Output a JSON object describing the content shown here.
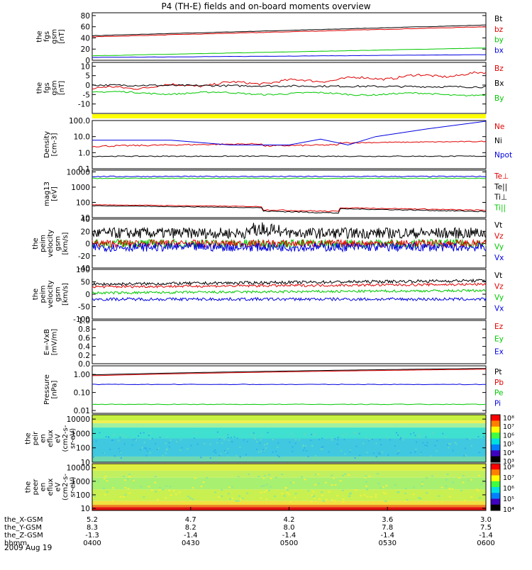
{
  "title": "P4 (TH-E) fields and on-board moments overview",
  "date": "2009 Aug 19",
  "colors": {
    "black": "#000000",
    "red": "#e00000",
    "green": "#00c800",
    "blue": "#0000e0",
    "yellow": "#ffff00"
  },
  "panels": [
    {
      "id": "fgs-mag",
      "ylabel": [
        "the",
        "fgs",
        "gsm",
        "[nT]"
      ],
      "ylim": [
        0,
        85
      ],
      "ticks": [
        "80",
        "60",
        "40",
        "20",
        "0"
      ],
      "tickvals": [
        80,
        60,
        40,
        20,
        0
      ],
      "legend": [
        {
          "label": "Bt",
          "color": "black"
        },
        {
          "label": "bz",
          "color": "red"
        },
        {
          "label": "by",
          "color": "green"
        },
        {
          "label": "bx",
          "color": "blue"
        }
      ]
    },
    {
      "id": "fgs-comp",
      "ylabel": [
        "the",
        "fgs",
        "gsm",
        "[nT]"
      ],
      "ylim": [
        -15,
        12
      ],
      "ticks": [
        "10",
        "5",
        "0",
        "-5",
        "-10"
      ],
      "tickvals": [
        10,
        5,
        0,
        -5,
        -10
      ],
      "legend": [
        {
          "label": "Bz",
          "color": "red"
        },
        {
          "label": "Bx",
          "color": "black"
        },
        {
          "label": "By",
          "color": "green"
        }
      ]
    },
    {
      "id": "density",
      "ylabel": [
        "Density",
        "[cm-3]"
      ],
      "log": true,
      "ylim": [
        0.1,
        100
      ],
      "ticks": [
        "100.0",
        "10.0",
        "1.0",
        "0.1"
      ],
      "tickvals": [
        100,
        10,
        1,
        0.1
      ],
      "legend": [
        {
          "label": "Ne",
          "color": "red"
        },
        {
          "label": "Ni",
          "color": "black"
        },
        {
          "label": "Npot",
          "color": "blue"
        }
      ]
    },
    {
      "id": "temperature",
      "ylabel": [
        "mag13",
        "[eV]"
      ],
      "log": true,
      "ylim": [
        10,
        13000
      ],
      "ticks": [
        "10000",
        "1000",
        "100",
        "10"
      ],
      "tickvals": [
        10000,
        1000,
        100,
        10
      ],
      "legend": [
        {
          "label": "Te⊥",
          "color": "red"
        },
        {
          "label": "Te||",
          "color": "black"
        },
        {
          "label": "Ti⊥",
          "color": "black"
        },
        {
          "label": "Ti||",
          "color": "green"
        }
      ]
    },
    {
      "id": "velocity-e",
      "ylabel": [
        "the",
        "peim",
        "velocity",
        "gsm",
        "[km/s]"
      ],
      "ylim": [
        -40,
        40
      ],
      "ticks": [
        "40",
        "20",
        "0",
        "-20",
        "-40"
      ],
      "tickvals": [
        40,
        20,
        0,
        -20,
        -40
      ],
      "legend": [
        {
          "label": "Vt",
          "color": "black"
        },
        {
          "label": "Vz",
          "color": "red"
        },
        {
          "label": "Vy",
          "color": "green"
        },
        {
          "label": "Vx",
          "color": "blue"
        }
      ]
    },
    {
      "id": "velocity-i",
      "ylabel": [
        "the",
        "peim",
        "velocity",
        "gsm",
        "[km/s]"
      ],
      "ylim": [
        -100,
        100
      ],
      "ticks": [
        "100",
        "50",
        "0",
        "-50",
        "-100"
      ],
      "tickvals": [
        100,
        50,
        0,
        -50,
        -100
      ],
      "legend": [
        {
          "label": "Vt",
          "color": "black"
        },
        {
          "label": "Vz",
          "color": "red"
        },
        {
          "label": "Vy",
          "color": "green"
        },
        {
          "label": "Vx",
          "color": "blue"
        }
      ]
    },
    {
      "id": "efield",
      "ylabel": [
        "E=-VxB",
        "[mV/m]"
      ],
      "ylim": [
        0,
        1
      ],
      "ticks": [
        "1.0",
        "0.8",
        "0.6",
        "0.4",
        "0.2",
        "0.0"
      ],
      "tickvals": [
        1,
        0.8,
        0.6,
        0.4,
        0.2,
        0
      ],
      "legend": [
        {
          "label": "Ez",
          "color": "red"
        },
        {
          "label": "Ey",
          "color": "green"
        },
        {
          "label": "Ex",
          "color": "blue"
        }
      ]
    },
    {
      "id": "pressure",
      "ylabel": [
        "Pressure",
        "[nPa]"
      ],
      "log": true,
      "ylim": [
        0.007,
        3
      ],
      "ticks": [
        "1.00",
        "0.10",
        "0.01"
      ],
      "tickvals": [
        1,
        0.1,
        0.01
      ],
      "legend": [
        {
          "label": "Pt",
          "color": "black"
        },
        {
          "label": "Pb",
          "color": "red"
        },
        {
          "label": "Pe",
          "color": "green"
        },
        {
          "label": "Pi",
          "color": "blue"
        }
      ]
    },
    {
      "id": "ion-spec",
      "ylabel": [
        "the",
        "peir",
        "en",
        "eflux",
        "eV",
        "(cm2-s-",
        "sr-eV)"
      ],
      "log": true,
      "ylim": [
        10,
        20000
      ],
      "ticks": [
        "10000",
        "1000",
        "100",
        "10"
      ],
      "tickvals": [
        10000,
        1000,
        100,
        10
      ],
      "colorbar": [
        "10⁸",
        "10⁷",
        "10⁶",
        "10⁵",
        "10⁴",
        "10³"
      ]
    },
    {
      "id": "ele-spec",
      "ylabel": [
        "the",
        "peer",
        "en",
        "eflux",
        "eV",
        "(cm2-s-",
        "sr-eV)"
      ],
      "log": true,
      "ylim": [
        7,
        20000
      ],
      "ticks": [
        "10000",
        "1000",
        "100",
        "10"
      ],
      "tickvals": [
        10000,
        1000,
        100,
        10
      ],
      "colorbar": [
        "10⁸",
        "10⁷",
        "10⁶",
        "10⁵",
        "10⁴"
      ]
    }
  ],
  "xaxis": {
    "rows": [
      {
        "label": "the_X-GSM",
        "values": [
          "5.2",
          "4.7",
          "4.2",
          "3.6",
          "3.0"
        ]
      },
      {
        "label": "the_Y-GSM",
        "values": [
          "8.3",
          "8.2",
          "8.0",
          "7.8",
          "7.5"
        ]
      },
      {
        "label": "the_Z-GSM",
        "values": [
          "-1.3",
          "-1.4",
          "-1.4",
          "-1.4",
          "-1.4"
        ]
      },
      {
        "label": "hhmm",
        "values": [
          "0400",
          "0430",
          "0500",
          "0530",
          "0600"
        ]
      }
    ]
  },
  "chart_data": [
    {
      "type": "line",
      "series": [
        {
          "name": "Bt",
          "x": [
            "0400",
            "0600"
          ],
          "values": [
            44,
            63
          ]
        },
        {
          "name": "bz",
          "x": [
            "0400",
            "0600"
          ],
          "values": [
            42,
            60
          ]
        },
        {
          "name": "by",
          "x": [
            "0400",
            "0600"
          ],
          "values": [
            8,
            22
          ]
        },
        {
          "name": "bx",
          "x": [
            "0400",
            "0600"
          ],
          "values": [
            5,
            10
          ]
        }
      ],
      "ylim": [
        0,
        85
      ]
    },
    {
      "type": "line",
      "series": [
        {
          "name": "Bz",
          "x": [
            "0400",
            "0430",
            "0500",
            "0530",
            "0600"
          ],
          "values": [
            -2,
            0,
            2,
            4,
            6
          ]
        },
        {
          "name": "Bx",
          "x": [
            "0400",
            "0600"
          ],
          "values": [
            0,
            -1
          ]
        },
        {
          "name": "By",
          "x": [
            "0400",
            "0600"
          ],
          "values": [
            -4,
            -5
          ]
        }
      ],
      "ylim": [
        -15,
        12
      ]
    },
    {
      "type": "line",
      "series": [
        {
          "name": "Ne",
          "x": [
            "0400",
            "0600"
          ],
          "values": [
            2.5,
            5
          ]
        },
        {
          "name": "Ni",
          "x": [
            "0400",
            "0600"
          ],
          "values": [
            0.6,
            0.6
          ]
        },
        {
          "name": "Npot",
          "x": [
            "0400",
            "0600"
          ],
          "values": [
            5,
            100
          ]
        }
      ],
      "ylim": [
        0.1,
        100
      ]
    },
    {
      "type": "line",
      "series": [
        {
          "name": "Te⊥",
          "x": [
            "0400",
            "0600"
          ],
          "values": [
            5000,
            5000
          ]
        },
        {
          "name": "Te||",
          "x": [
            "0400",
            "0600"
          ],
          "values": [
            5000,
            5000
          ]
        },
        {
          "name": "Ti||",
          "x": [
            "0400",
            "0600"
          ],
          "values": [
            4000,
            4000
          ]
        },
        {
          "name": "Ti⊥",
          "x": [
            "0400",
            "0600"
          ],
          "values": [
            70,
            30
          ]
        }
      ],
      "ylim": [
        10,
        13000
      ]
    }
  ]
}
